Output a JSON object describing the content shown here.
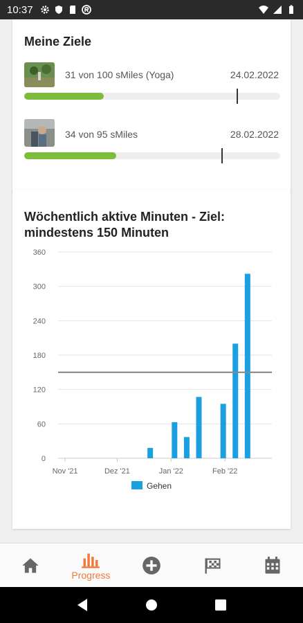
{
  "status_bar": {
    "time": "10:37",
    "left_icons": [
      "settings-icon",
      "shield-icon",
      "sd-card-icon",
      "app-icon"
    ],
    "right_icons": [
      "wifi-icon",
      "signal-icon",
      "battery-icon"
    ]
  },
  "goals": {
    "title": "Meine Ziele",
    "items": [
      {
        "text": "31 von 100 sMiles (Yoga)",
        "date": "24.02.2022",
        "progress": 0.31,
        "target_marker": 0.83
      },
      {
        "text": "34 von 95 sMiles",
        "date": "28.02.2022",
        "progress": 0.36,
        "target_marker": 0.77
      }
    ]
  },
  "chart_card": {
    "title": "Wöchentlich aktive Minuten - Ziel: mindestens 150 Minuten"
  },
  "chart_data": {
    "type": "bar",
    "title": "Wöchentlich aktive Minuten - Ziel: mindestens 150 Minuten",
    "xlabel": "",
    "ylabel": "",
    "ylim": [
      0,
      360
    ],
    "yticks": [
      0,
      60,
      120,
      180,
      240,
      300,
      360
    ],
    "x_tick_labels": [
      "Nov '21",
      "Dez '21",
      "Jan '22",
      "Feb '22"
    ],
    "goal_line": 150,
    "series": [
      {
        "name": "Gehen",
        "color": "#1a9fe0",
        "points": [
          {
            "date": "2021-12-20",
            "value": 18
          },
          {
            "date": "2022-01-03",
            "value": 63
          },
          {
            "date": "2022-01-10",
            "value": 37
          },
          {
            "date": "2022-01-17",
            "value": 107
          },
          {
            "date": "2022-01-31",
            "value": 95
          },
          {
            "date": "2022-02-07",
            "value": 200
          },
          {
            "date": "2022-02-14",
            "value": 322
          }
        ]
      }
    ],
    "x_axis_dates": {
      "start": "2021-10-28",
      "end": "2022-02-28",
      "ticks": [
        "2021-11-01",
        "2021-12-01",
        "2022-01-01",
        "2022-02-01"
      ]
    },
    "legend": {
      "position": "bottom",
      "label": "Gehen",
      "color": "#1a9fe0"
    },
    "grid": true
  },
  "navbar": {
    "items": [
      {
        "name": "home",
        "label": "",
        "icon": "home-icon"
      },
      {
        "name": "progress",
        "label": "Progress",
        "icon": "bar-chart-icon",
        "active": true
      },
      {
        "name": "add",
        "label": "",
        "icon": "plus-circle-icon"
      },
      {
        "name": "challenges",
        "label": "",
        "icon": "flag-icon"
      },
      {
        "name": "calendar",
        "label": "",
        "icon": "calendar-icon"
      }
    ]
  },
  "colors": {
    "accent": "#f07a3a",
    "progress_green": "#7cbd3c",
    "bar_blue": "#1a9fe0"
  }
}
